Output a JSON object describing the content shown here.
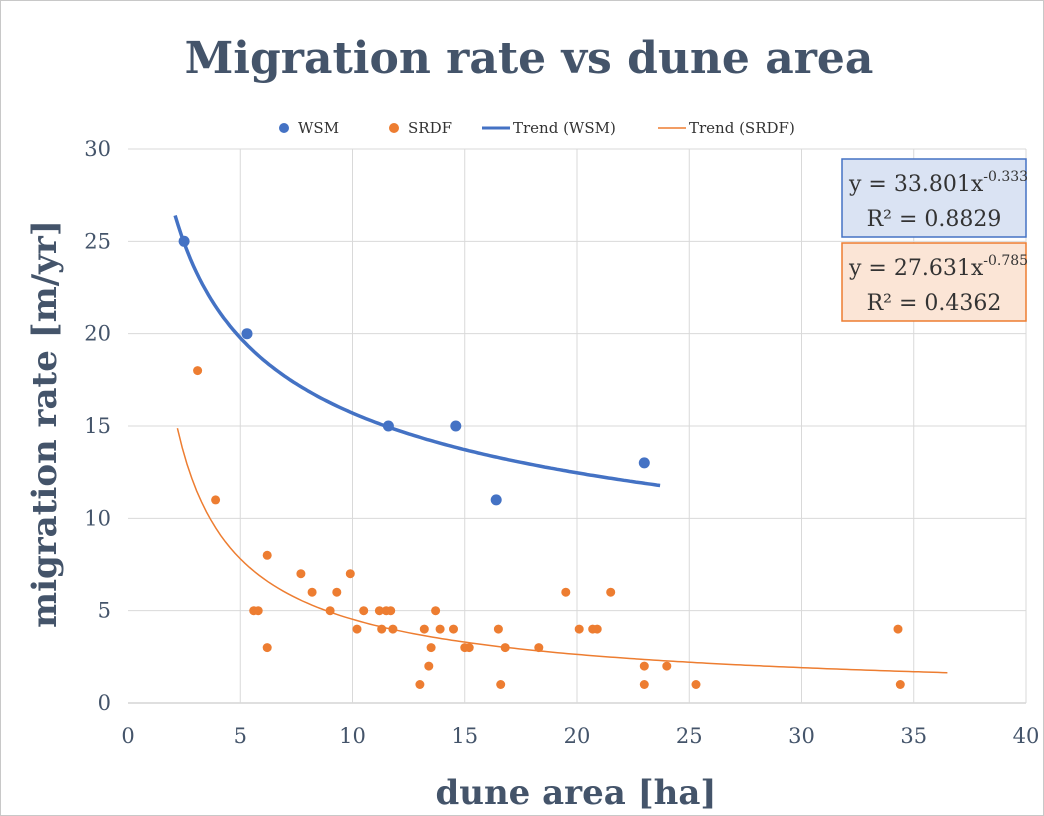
{
  "chart_data": {
    "type": "scatter",
    "title": "Migration rate vs dune area",
    "xlabel": "dune area [ha]",
    "ylabel": "migration rate [m/yr]",
    "xlim": [
      0,
      40
    ],
    "ylim": [
      0,
      30
    ],
    "xticks": [
      0,
      5,
      10,
      15,
      20,
      25,
      30,
      35,
      40
    ],
    "yticks": [
      0,
      5,
      10,
      15,
      20,
      25,
      30
    ],
    "grid": true,
    "legend_position": "top",
    "legend": [
      "WSM",
      "SRDF",
      "Trend (WSM)",
      "Trend (SRDF)"
    ],
    "series": [
      {
        "name": "WSM",
        "color": "#4472c4",
        "points": [
          [
            2.5,
            25
          ],
          [
            5.3,
            20
          ],
          [
            11.6,
            15
          ],
          [
            14.6,
            15
          ],
          [
            16.4,
            11
          ],
          [
            23.0,
            13
          ]
        ]
      },
      {
        "name": "SRDF",
        "color": "#ed7d31",
        "points": [
          [
            3.1,
            18
          ],
          [
            3.9,
            11
          ],
          [
            5.6,
            5
          ],
          [
            5.8,
            5
          ],
          [
            6.2,
            8
          ],
          [
            6.2,
            3
          ],
          [
            7.7,
            7
          ],
          [
            8.2,
            6
          ],
          [
            9.0,
            5
          ],
          [
            9.3,
            6
          ],
          [
            9.9,
            7
          ],
          [
            10.2,
            4
          ],
          [
            10.5,
            5
          ],
          [
            11.2,
            5
          ],
          [
            11.3,
            4
          ],
          [
            11.5,
            5
          ],
          [
            11.7,
            5
          ],
          [
            11.8,
            4
          ],
          [
            13.0,
            1
          ],
          [
            13.2,
            4
          ],
          [
            13.4,
            2
          ],
          [
            13.5,
            3
          ],
          [
            13.7,
            5
          ],
          [
            13.9,
            4
          ],
          [
            14.5,
            4
          ],
          [
            15.0,
            3
          ],
          [
            15.2,
            3
          ],
          [
            16.5,
            4
          ],
          [
            16.6,
            1
          ],
          [
            16.8,
            3
          ],
          [
            18.3,
            3
          ],
          [
            19.5,
            6
          ],
          [
            20.1,
            4
          ],
          [
            20.7,
            4
          ],
          [
            20.9,
            4
          ],
          [
            21.5,
            6
          ],
          [
            23.0,
            2
          ],
          [
            23.0,
            1
          ],
          [
            24.0,
            2
          ],
          [
            25.3,
            1
          ],
          [
            34.3,
            4
          ],
          [
            34.4,
            1
          ]
        ]
      }
    ],
    "trendlines": [
      {
        "name": "Trend (WSM)",
        "color": "#4472c4",
        "model": "power",
        "a": 33.801,
        "b": -0.333,
        "x_range": [
          2.1,
          23.7
        ],
        "equation": {
          "lead": "y = 33.801x",
          "exponent": "-0.333",
          "r2": "R² = 0.8829"
        },
        "box_fill": "#dae3f3"
      },
      {
        "name": "Trend (SRDF)",
        "color": "#ed7d31",
        "model": "power",
        "a": 27.631,
        "b": -0.785,
        "x_range": [
          2.2,
          36.5
        ],
        "equation": {
          "lead": "y = 27.631x",
          "exponent": "-0.785",
          "r2": "R² = 0.4362"
        },
        "box_fill": "#fbe5d6"
      }
    ]
  }
}
